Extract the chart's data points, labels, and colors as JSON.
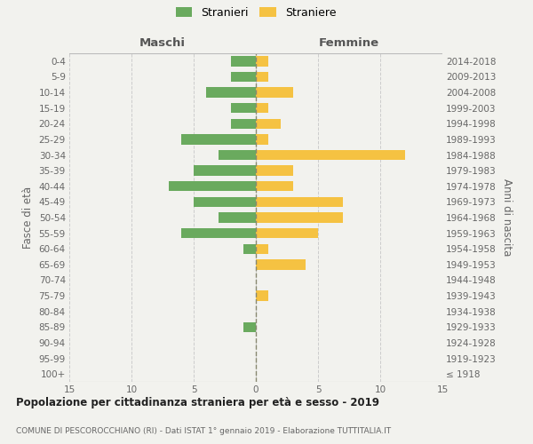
{
  "age_groups": [
    "100+",
    "95-99",
    "90-94",
    "85-89",
    "80-84",
    "75-79",
    "70-74",
    "65-69",
    "60-64",
    "55-59",
    "50-54",
    "45-49",
    "40-44",
    "35-39",
    "30-34",
    "25-29",
    "20-24",
    "15-19",
    "10-14",
    "5-9",
    "0-4"
  ],
  "birth_years": [
    "≤ 1918",
    "1919-1923",
    "1924-1928",
    "1929-1933",
    "1934-1938",
    "1939-1943",
    "1944-1948",
    "1949-1953",
    "1954-1958",
    "1959-1963",
    "1964-1968",
    "1969-1973",
    "1974-1978",
    "1979-1983",
    "1984-1988",
    "1989-1993",
    "1994-1998",
    "1999-2003",
    "2004-2008",
    "2009-2013",
    "2014-2018"
  ],
  "maschi": [
    0,
    0,
    0,
    1,
    0,
    0,
    0,
    0,
    1,
    6,
    3,
    5,
    7,
    5,
    3,
    6,
    2,
    2,
    4,
    2,
    2
  ],
  "femmine": [
    0,
    0,
    0,
    0,
    0,
    1,
    0,
    4,
    1,
    5,
    7,
    7,
    3,
    3,
    12,
    1,
    2,
    1,
    3,
    1,
    1
  ],
  "maschi_color": "#6aaa5e",
  "femmine_color": "#f5c242",
  "bg_color": "#f2f2ee",
  "grid_color": "#cccccc",
  "center_line_color": "#888870",
  "title_main": "Popolazione per cittadinanza straniera per età e sesso - 2019",
  "title_sub": "COMUNE DI PESCOROCCHIANO (RI) - Dati ISTAT 1° gennaio 2019 - Elaborazione TUTTITALIA.IT",
  "legend_stranieri": "Stranieri",
  "legend_straniere": "Straniere",
  "xlabel_maschi": "Maschi",
  "xlabel_femmine": "Femmine",
  "ylabel_left": "Fasce di età",
  "ylabel_right": "Anni di nascita",
  "xlim": 15,
  "tick_fontsize": 7.5,
  "label_fontsize": 9
}
